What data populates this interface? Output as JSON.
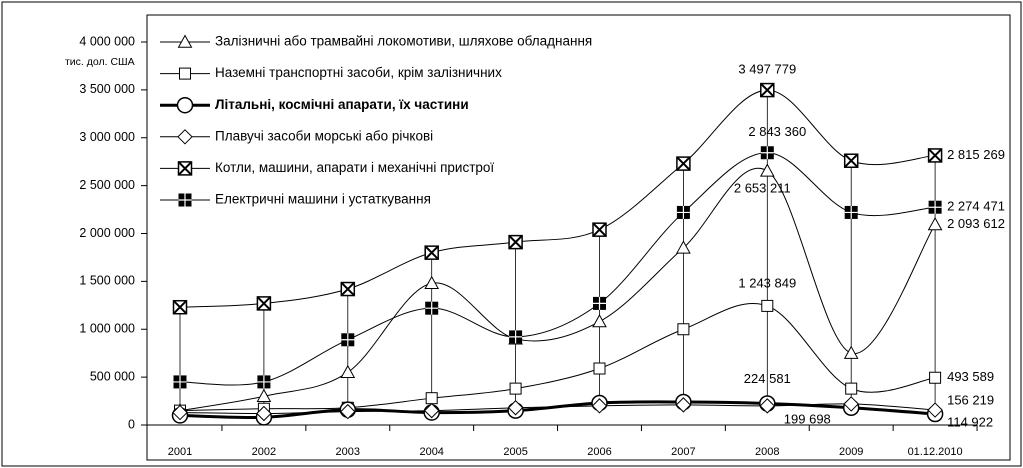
{
  "chart_data": {
    "type": "line",
    "y_unit_label": "тис. дол. США",
    "categories": [
      "2001",
      "2002",
      "2003",
      "2004",
      "2005",
      "2006",
      "2007",
      "2008",
      "2009",
      "01.12.2010"
    ],
    "ylim": [
      0,
      4000000
    ],
    "yticks": [
      {
        "value": 0,
        "label": "0"
      },
      {
        "value": 500000,
        "label": "500 000"
      },
      {
        "value": 1000000,
        "label": "1 000 000"
      },
      {
        "value": 1500000,
        "label": "1 500 000"
      },
      {
        "value": 2000000,
        "label": "2 000 000"
      },
      {
        "value": 2500000,
        "label": "2 500 000"
      },
      {
        "value": 3000000,
        "label": "3 000 000"
      },
      {
        "value": 3500000,
        "label": "3 500 000"
      },
      {
        "value": 4000000,
        "label": "4 000 000"
      }
    ],
    "drop_lines": true,
    "series": [
      {
        "name": "Залізничні або трамвайні локомотиви, шляхове обладнання",
        "color": "#000000",
        "marker": "triangle",
        "line_width": 1,
        "values": [
          150000,
          300000,
          550000,
          1480000,
          900000,
          1080000,
          1850000,
          2653211,
          750000,
          2093612
        ],
        "value_labels": [
          null,
          null,
          null,
          null,
          null,
          null,
          null,
          "2 653 211",
          null,
          "2 093 612"
        ]
      },
      {
        "name": "Наземні транспортні засоби, крім залізничних",
        "color": "#000000",
        "marker": "square",
        "line_width": 1,
        "values": [
          150000,
          170000,
          180000,
          280000,
          380000,
          590000,
          1000000,
          1243849,
          380000,
          493589
        ],
        "value_labels": [
          null,
          null,
          null,
          null,
          null,
          null,
          null,
          "1 243 849",
          null,
          "493 589"
        ]
      },
      {
        "name": "Літальні, космічні апарати, їх частини",
        "color": "#000000",
        "marker": "circle",
        "line_width": 3,
        "values": [
          100000,
          80000,
          160000,
          130000,
          150000,
          230000,
          240000,
          224581,
          180000,
          114922
        ],
        "value_labels": [
          null,
          null,
          null,
          null,
          null,
          null,
          null,
          "224 581",
          null,
          "114 922"
        ]
      },
      {
        "name": "Плавучі засоби морські або річкові",
        "color": "#000000",
        "marker": "diamond",
        "line_width": 1,
        "values": [
          130000,
          120000,
          140000,
          150000,
          180000,
          200000,
          210000,
          199698,
          220000,
          156219
        ],
        "value_labels": [
          null,
          null,
          null,
          null,
          null,
          null,
          null,
          "199 698",
          null,
          "156 219"
        ]
      },
      {
        "name": "Котли, машини, апарати і механічні пристрої",
        "color": "#000000",
        "marker": "xbox",
        "line_width": 1,
        "values": [
          1230000,
          1270000,
          1420000,
          1800000,
          1910000,
          2040000,
          2730000,
          3497779,
          2760000,
          2815269
        ],
        "value_labels": [
          null,
          null,
          null,
          null,
          null,
          null,
          null,
          "3 497 779",
          null,
          "2 815 269"
        ]
      },
      {
        "name": "Електричні машини і устаткування",
        "color": "#000000",
        "marker": "filledsquare",
        "line_width": 1,
        "values": [
          450000,
          450000,
          890000,
          1220000,
          920000,
          1270000,
          2220000,
          2843360,
          2220000,
          2274471
        ],
        "value_labels": [
          null,
          null,
          null,
          null,
          null,
          null,
          null,
          "2 843 360",
          null,
          "2 274 471"
        ]
      }
    ]
  }
}
